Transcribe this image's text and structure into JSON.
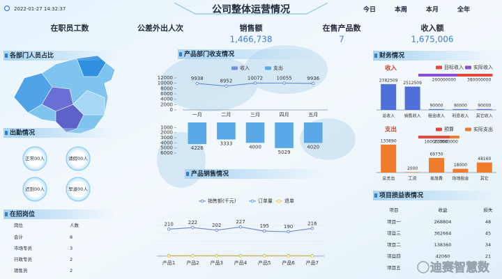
{
  "header": {
    "datetime": "2022-01-27 14:32:37",
    "title": "公司整体运营情况",
    "tabs": [
      "今日",
      "本周",
      "本月",
      "全年"
    ]
  },
  "kpis": [
    {
      "label": "在职员工数"
    },
    {
      "label": "公差外出人次"
    },
    {
      "label": "销售额",
      "value": "1,466,738"
    },
    {
      "label": "在售产品数",
      "value": "7"
    },
    {
      "label": "收入额",
      "value": "1,675,006"
    }
  ],
  "panels": {
    "map": "各部门人员占比",
    "attendance": "出勤情况",
    "positions": "在招岗位",
    "finance": "财务情况",
    "projects": "项目损益表情况"
  },
  "attendance": [
    "正常00人",
    "请假00人",
    "迟到00人",
    "早退00人"
  ],
  "positions": {
    "headers": [
      "岗位",
      "人数"
    ],
    "rows": [
      [
        "会计",
        "8"
      ],
      [
        "市场专员",
        "3"
      ],
      [
        "行政专员",
        "2"
      ],
      [
        "销售员",
        "2"
      ]
    ]
  },
  "projects": {
    "headers": [
      "项目",
      "收益",
      "损失"
    ],
    "rows": [
      [
        "项目一",
        "268804",
        "48"
      ],
      [
        "项目三",
        "362664",
        "45"
      ],
      [
        "项目二",
        "138360",
        "34"
      ],
      [
        "项目四",
        "42060",
        "21"
      ],
      [
        "项目五"
      ]
    ]
  },
  "watermark": "迪赛智慧数",
  "chart_data": [
    {
      "type": "combo",
      "title": "产品部门收支情况",
      "categories": [
        "一月",
        "二月",
        "三月",
        "四月",
        "五月"
      ],
      "series": [
        {
          "name": "收入",
          "type": "line",
          "color": "#6f8fd6",
          "values": [
            9938,
            8952,
            10072,
            10055,
            9936
          ]
        },
        {
          "name": "支出",
          "type": "bar",
          "axis": "y2",
          "color": "#5aa9e6",
          "values": [
            4226,
            3333,
            4000,
            5029,
            4020
          ]
        }
      ],
      "ylim": [
        0,
        12000
      ],
      "yticks": [
        0,
        2000,
        4000,
        6000,
        8000,
        10000,
        12000
      ],
      "y2lim": [
        0,
        6000
      ],
      "y2ticks": [
        1000,
        2000,
        3000,
        4000,
        5000,
        6000
      ],
      "y2_inverted": true,
      "data_labels": true
    },
    {
      "type": "line",
      "title": "产品销售情况",
      "categories": [
        "产品1",
        "产品2",
        "产品3",
        "产品4",
        "产品5",
        "产品6",
        "产品7"
      ],
      "series": [
        {
          "name": "销售额(千元)",
          "color": "#6f8fd6",
          "values": [
            210,
            222,
            202,
            227,
            195,
            190,
            216
          ],
          "data_labels": true
        },
        {
          "name": "订单量",
          "color": "#5aa9e6",
          "values": [
            3,
            3,
            3,
            3,
            3,
            3,
            3
          ]
        },
        {
          "name": "退单",
          "color": "#f5c342",
          "values": [
            1,
            1,
            1,
            1,
            1,
            1,
            1
          ]
        }
      ],
      "ylim": [
        0,
        250
      ]
    },
    {
      "type": "bar",
      "title": "收入",
      "categories": [
        "总收入",
        "销售收入",
        "租金收入",
        "利息收入",
        "其它收入"
      ],
      "values": [
        2782509,
        2512509,
        90000,
        90000,
        90000
      ],
      "color": "#4f6fd9",
      "ylim": [
        0,
        3000000
      ],
      "data_labels": true
    },
    {
      "type": "hbar",
      "series": [
        {
          "name": "目标收入",
          "color": "#e8453c",
          "values": [
            380000000
          ]
        },
        {
          "name": "实际收入",
          "color": "#8a4fd8",
          "values": [
            200000000
          ]
        }
      ],
      "xlim": [
        0,
        400000000
      ],
      "data_labels": true
    },
    {
      "type": "bar",
      "title": "支出",
      "categories": [
        "总支出",
        "工资",
        "差旅费",
        "场地租金",
        "其它"
      ],
      "values": [
        133890,
        2000,
        69730,
        18000,
        48160
      ],
      "color": "#f07b2a",
      "ylim": [
        0,
        150000
      ],
      "data_labels": true
    },
    {
      "type": "hbar",
      "series": [
        {
          "name": "预算",
          "color": "#e8453c",
          "values": [
            160000000
          ]
        },
        {
          "name": "实际支出",
          "color": "#f07b2a",
          "values": [
            210000000
          ]
        }
      ],
      "xlim": [
        0,
        400000000
      ],
      "data_labels": true
    }
  ]
}
